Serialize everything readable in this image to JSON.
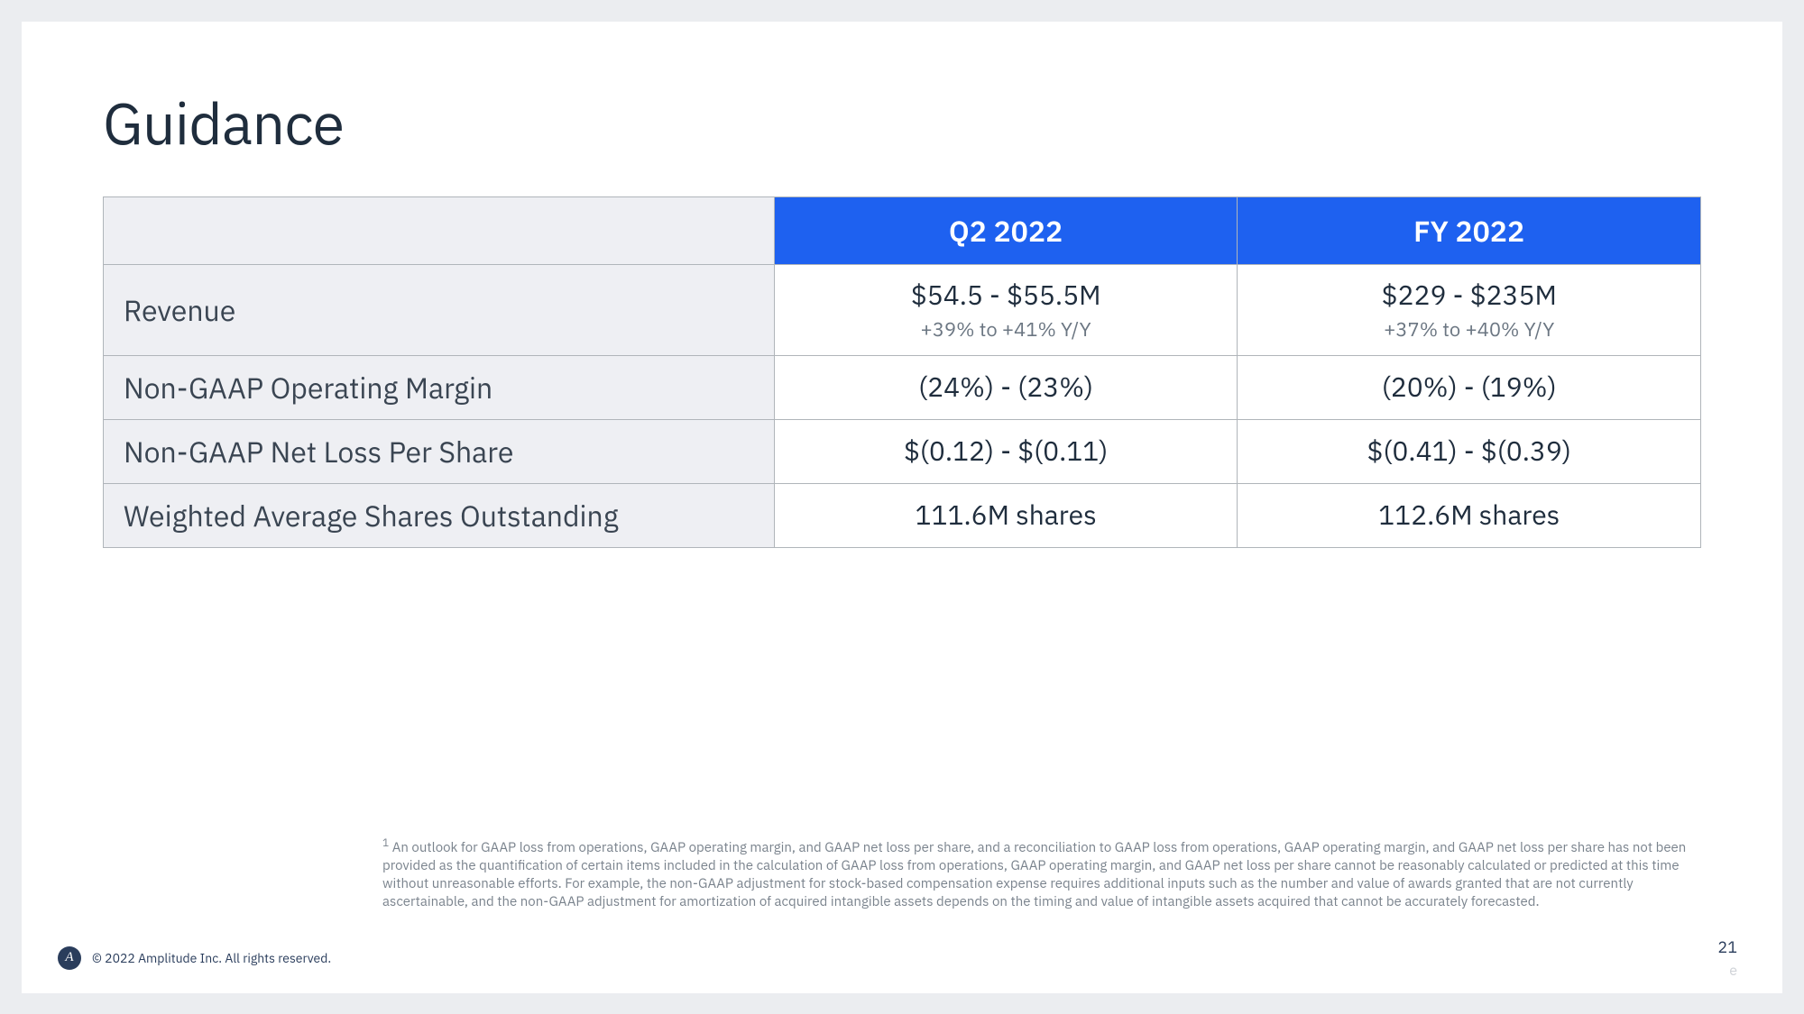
{
  "title": "Guidance",
  "table": {
    "header_bg": "#1e61f0",
    "header_color": "#ffffff",
    "row_label_bg": "#eeeff3",
    "border_color": "#b0b5ba",
    "columns": [
      "Q2 2022",
      "FY 2022"
    ],
    "rows": [
      {
        "label": "Revenue",
        "q2": {
          "value": "$54.5 - $55.5M",
          "sub": "+39% to +41% Y/Y"
        },
        "fy": {
          "value": "$229 - $235M",
          "sub": "+37% to +40% Y/Y"
        }
      },
      {
        "label": "Non-GAAP Operating Margin",
        "q2": {
          "value": "(24%) - (23%)"
        },
        "fy": {
          "value": "(20%) - (19%)"
        }
      },
      {
        "label": "Non-GAAP Net Loss Per Share",
        "q2": {
          "value": "$(0.12) - $(0.11)"
        },
        "fy": {
          "value": "$(0.41) - $(0.39)"
        }
      },
      {
        "label": "Weighted Average Shares Outstanding",
        "q2": {
          "value": "111.6M shares"
        },
        "fy": {
          "value": "112.6M shares"
        }
      }
    ]
  },
  "footnote": "An outlook for GAAP loss from operations, GAAP operating margin, and GAAP net loss per share, and a reconciliation to GAAP loss from operations, GAAP operating margin,  and GAAP net loss per share has not been provided as the quantification of certain items included in the calculation of GAAP loss from operations, GAAP operating margin, and GAAP net loss per share cannot be reasonably calculated or predicted at this time without unreasonable efforts. For example, the non-GAAP adjustment for stock-based compensation expense requires additional inputs such as the number and value of awards granted that are not currently ascertainable, and the non-GAAP adjustment for amortization of acquired intangible assets depends on the timing and value of intangible assets acquired that cannot be accurately forecasted.",
  "footer": {
    "logo_text": "A",
    "copyright": "© 2022 Amplitude Inc.  All rights reserved."
  },
  "page_number": "21",
  "watermark": "e"
}
